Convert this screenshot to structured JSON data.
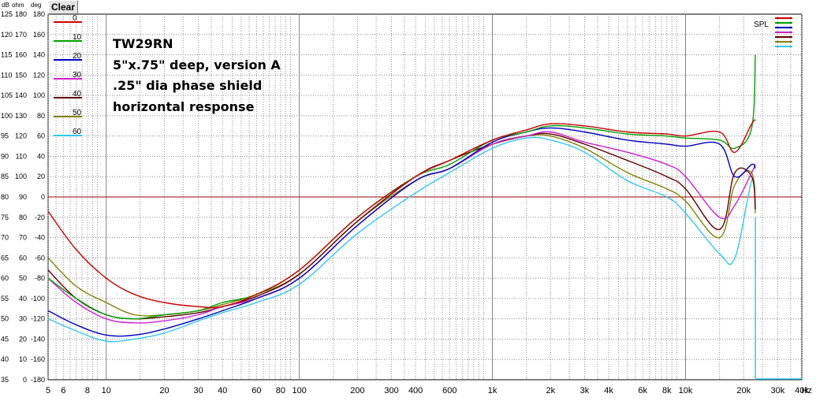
{
  "toolbar": {
    "clear_label": "Clear"
  },
  "chart_data": {
    "type": "line",
    "x_scale": "log",
    "xlim": [
      5,
      40000
    ],
    "x_ticks": [
      5,
      6,
      8,
      10,
      20,
      30,
      40,
      60,
      80,
      100,
      200,
      300,
      400,
      600,
      "1k",
      "2k",
      "3k",
      "4k",
      "6k",
      "8k",
      "10k",
      "20k",
      "30k",
      "40k"
    ],
    "x_unit": "Hz",
    "y_units": [
      "dB",
      "ohm",
      "deg"
    ],
    "ylim_db": [
      35,
      125
    ],
    "y_ticks": {
      "db": [
        "125",
        "120",
        "115",
        "110",
        "105",
        "100",
        "95",
        "90",
        "85",
        "80",
        "75",
        "70",
        "65",
        "60",
        "55",
        "50",
        "45",
        "40",
        "35"
      ],
      "ohm": [
        "180",
        "170",
        "160",
        "150",
        "140",
        "130",
        "120",
        "110",
        "100",
        "90",
        "80",
        "70",
        "60",
        "50",
        "40",
        "30",
        "20",
        "10",
        "0"
      ],
      "deg": [
        "180",
        "160",
        "140",
        "120",
        "100",
        "80",
        "60",
        "40",
        "20",
        "0",
        "-20",
        "-40",
        "-60",
        "-80",
        "-100",
        "-120",
        "-140",
        "-160",
        "-180"
      ]
    },
    "grid": true,
    "reference_line_db": 80,
    "legend_position": "top-left",
    "spl_legend_label": "SPL",
    "annotation": [
      "TW29RN",
      "5\"x.75\" deep, version A",
      ".25\" dia phase shield",
      "horizontal response"
    ],
    "x": [
      5,
      7,
      10,
      14,
      20,
      30,
      40,
      60,
      100,
      200,
      400,
      600,
      1000,
      1500,
      2000,
      3000,
      5000,
      8000,
      10000,
      15000,
      18000,
      22000,
      23000
    ],
    "series": [
      {
        "name": "0",
        "color": "#cc0000",
        "values": [
          76.5,
          67,
          60,
          56,
          54,
          53,
          53,
          56,
          62,
          75,
          85,
          89,
          94,
          96.5,
          98,
          97.5,
          96,
          95.5,
          95,
          96,
          91,
          98,
          99
        ]
      },
      {
        "name": "10",
        "color": "#00a000",
        "values": [
          60,
          55,
          51,
          50,
          51,
          52,
          54,
          56,
          62,
          75,
          85,
          88,
          94,
          96,
          97.5,
          97,
          95.5,
          95,
          94.5,
          94,
          92,
          97,
          115
        ]
      },
      {
        "name": "20",
        "color": "#0000c0",
        "values": [
          52,
          48.5,
          46,
          46,
          47.5,
          50,
          52,
          55,
          60,
          73,
          84,
          87,
          93.5,
          96,
          97,
          96,
          94,
          93,
          92.5,
          93,
          85,
          88,
          87
        ]
      },
      {
        "name": "30",
        "color": "#d020d0",
        "values": [
          60,
          54,
          50,
          49,
          49.5,
          51,
          53,
          55,
          60,
          73,
          84,
          87,
          93,
          95,
          96,
          93.5,
          91,
          88,
          85,
          75,
          78,
          86,
          88
        ]
      },
      {
        "name": "40",
        "color": "#600000",
        "values": [
          62,
          55,
          51,
          50,
          50.5,
          51.5,
          53,
          55.5,
          61,
          74,
          85,
          89,
          93,
          95,
          95.5,
          93,
          89,
          85,
          82,
          72,
          86,
          85,
          77
        ]
      },
      {
        "name": "50",
        "color": "#808000",
        "values": [
          65,
          58,
          54,
          51,
          51,
          52,
          53.5,
          56,
          61,
          74,
          84,
          87,
          93,
          95,
          95,
          92,
          86,
          82,
          79,
          70,
          83,
          86,
          76
        ]
      },
      {
        "name": "60",
        "color": "#30c8f0",
        "values": [
          50,
          47,
          44.5,
          45,
          46.5,
          49.5,
          51.5,
          54,
          58.5,
          71,
          81,
          86,
          92,
          94.5,
          94,
          91,
          84,
          80,
          76,
          66,
          65,
          84,
          78
        ]
      }
    ]
  }
}
